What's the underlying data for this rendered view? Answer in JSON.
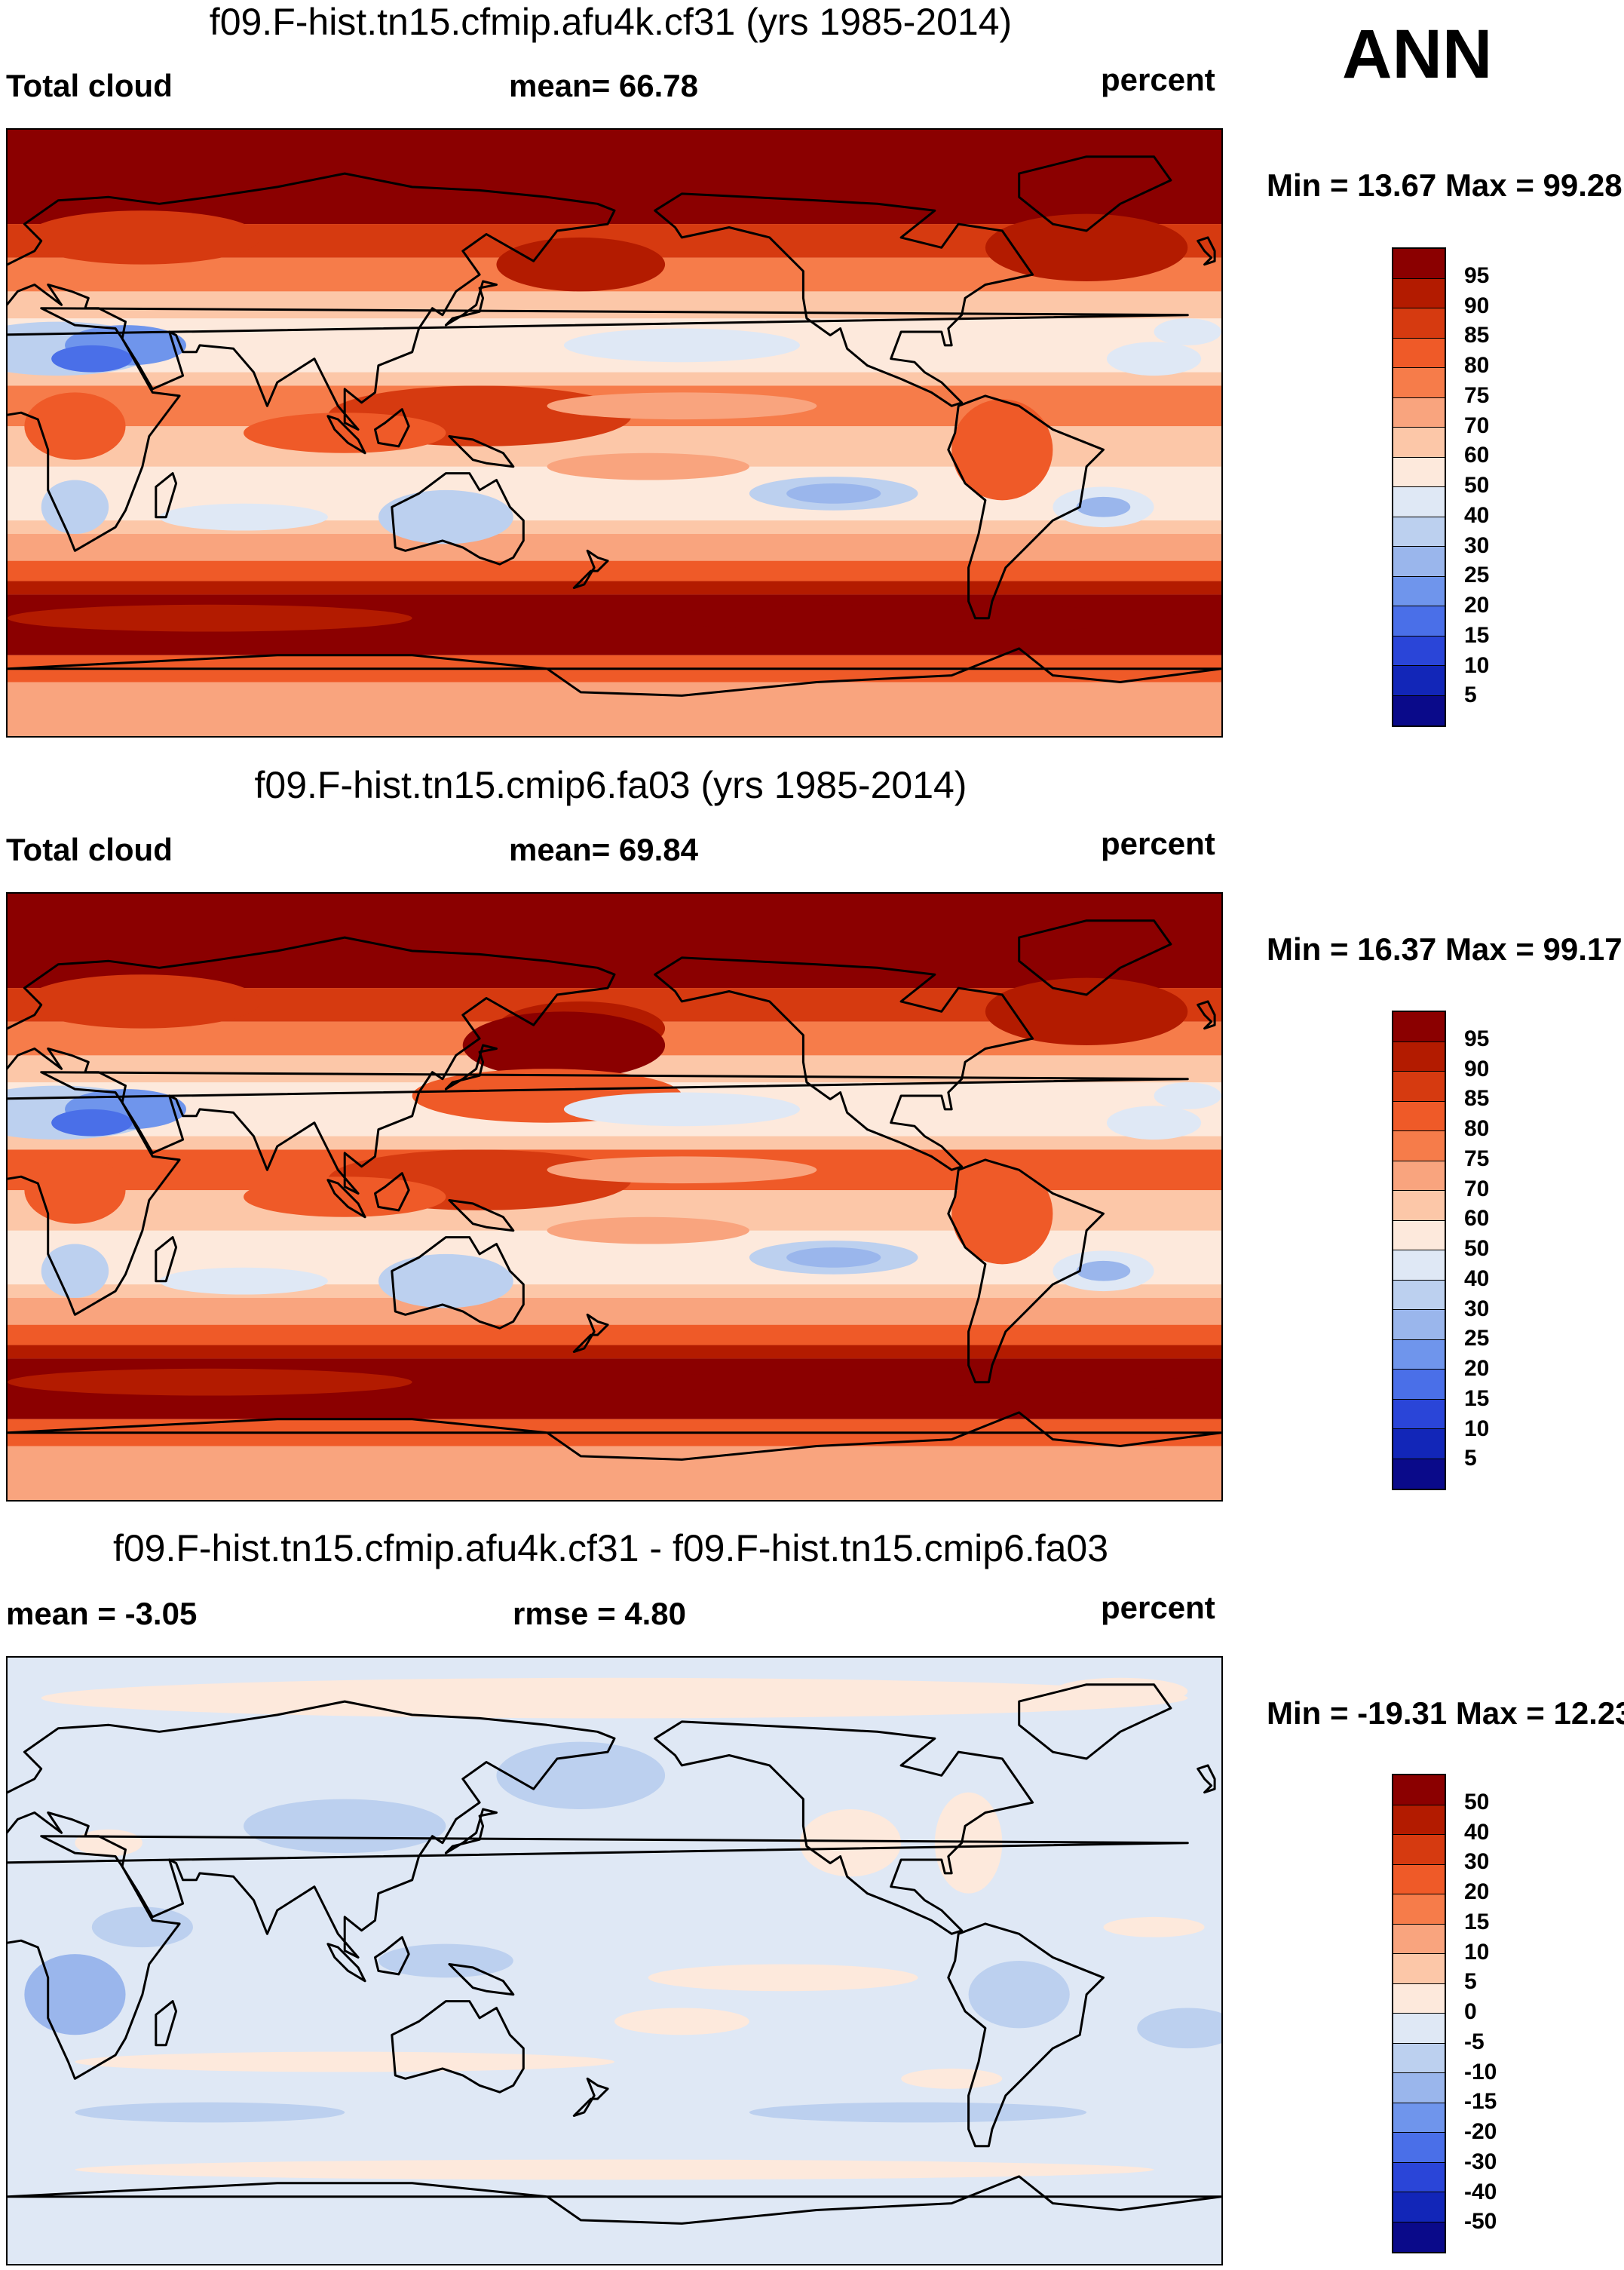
{
  "season": "ANN",
  "panels": [
    {
      "title": "f09.F-hist.tn15.cfmip.afu4k.cf31 (yrs 1985-2014)",
      "left_label": "Total cloud",
      "center_label": "mean=  66.78",
      "units": "percent",
      "minmax": "Min =  13.67 Max =  99.28",
      "kind": "abs"
    },
    {
      "title": "f09.F-hist.tn15.cmip6.fa03 (yrs 1985-2014)",
      "left_label": "Total cloud",
      "center_label": "mean=  69.84",
      "units": "percent",
      "minmax": "Min =  16.37 Max =  99.17",
      "kind": "abs"
    },
    {
      "title": "f09.F-hist.tn15.cfmip.afu4k.cf31 - f09.F-hist.tn15.cmip6.fa03",
      "left_label": "mean =  -3.05",
      "center_label": "rmse =    4.80",
      "units": "percent",
      "minmax": "Min = -19.31 Max =  12.23",
      "kind": "diff"
    }
  ],
  "colorbars": {
    "abs": {
      "labels": [
        "95",
        "90",
        "85",
        "80",
        "75",
        "70",
        "60",
        "50",
        "40",
        "30",
        "25",
        "20",
        "15",
        "10",
        "5"
      ],
      "colors": [
        "#8b0000",
        "#b31b00",
        "#d63a10",
        "#ef5a28",
        "#f67c4a",
        "#f9a47e",
        "#fcc7a8",
        "#fde9dc",
        "#dfe8f5",
        "#bcd0ef",
        "#9ab6ec",
        "#6f95ec",
        "#4a6fe8",
        "#2a45d8",
        "#1226b8",
        "#0a0a8a"
      ]
    },
    "diff": {
      "labels": [
        "50",
        "40",
        "30",
        "20",
        "15",
        "10",
        "5",
        "0",
        "-5",
        "-10",
        "-15",
        "-20",
        "-30",
        "-40",
        "-50"
      ],
      "colors": [
        "#8b0000",
        "#b31b00",
        "#d63a10",
        "#ef5a28",
        "#f67c4a",
        "#f9a47e",
        "#fcc7a8",
        "#fde9dc",
        "#dfe8f5",
        "#bcd0ef",
        "#9ab6ec",
        "#6f95ec",
        "#4a6fe8",
        "#2a45d8",
        "#1226b8",
        "#0a0a8a"
      ]
    }
  },
  "chart_data": {
    "type": "heatmap",
    "variable": "Total cloud",
    "units": "percent",
    "projection": "cylindrical equidistant, 0E-360E",
    "panels": [
      {
        "title": "f09.F-hist.tn15.cfmip.afu4k.cf31 (yrs 1985-2014)",
        "mean": 66.78,
        "min": 13.67,
        "max": 99.28
      },
      {
        "title": "f09.F-hist.tn15.cmip6.fa03 (yrs 1985-2014)",
        "mean": 69.84,
        "min": 16.37,
        "max": 99.17
      },
      {
        "title": "f09.F-hist.tn15.cfmip.afu4k.cf31 - f09.F-hist.tn15.cmip6.fa03",
        "mean": -3.05,
        "rmse": 4.8,
        "min": -19.31,
        "max": 12.23
      }
    ],
    "abs_levels": [
      5,
      10,
      15,
      20,
      25,
      30,
      40,
      50,
      60,
      70,
      75,
      80,
      85,
      90,
      95
    ],
    "diff_levels": [
      -50,
      -40,
      -30,
      -20,
      -15,
      -10,
      -5,
      0,
      5,
      10,
      15,
      20,
      30,
      40,
      50
    ]
  }
}
